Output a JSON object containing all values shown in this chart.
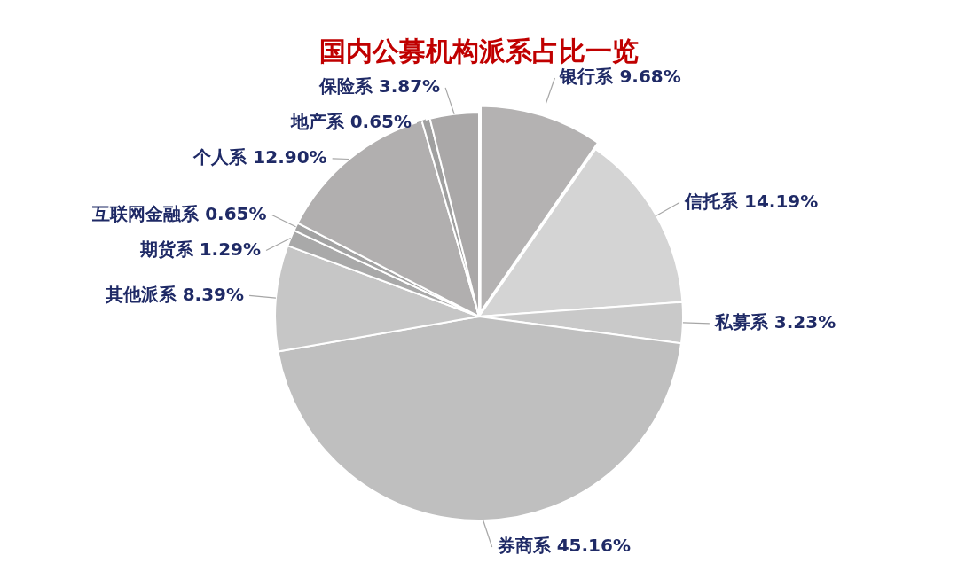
{
  "chart_data": {
    "type": "pie",
    "title": "国内公募机构派系占比一览",
    "categories": [
      "银行系",
      "信托系",
      "私募系",
      "券商系",
      "其他派系",
      "期货系",
      "互联网金融系",
      "个人系",
      "地产系",
      "保险系"
    ],
    "values": [
      9.68,
      14.19,
      3.23,
      45.16,
      8.39,
      1.29,
      0.65,
      12.9,
      0.65,
      3.87
    ],
    "value_labels": [
      "9.68%",
      "14.19%",
      "3.23%",
      "45.16%",
      "8.39%",
      "1.29%",
      "0.65%",
      "12.90%",
      "0.65%",
      "3.87%"
    ],
    "colors": [
      "#b4b2b2",
      "#d4d4d4",
      "#c9c9c9",
      "#bfbfbf",
      "#c6c6c6",
      "#a9a9a9",
      "#a3a3a3",
      "#b1afaf",
      "#a0a0a0",
      "#aaa8a8"
    ],
    "legend": false
  }
}
